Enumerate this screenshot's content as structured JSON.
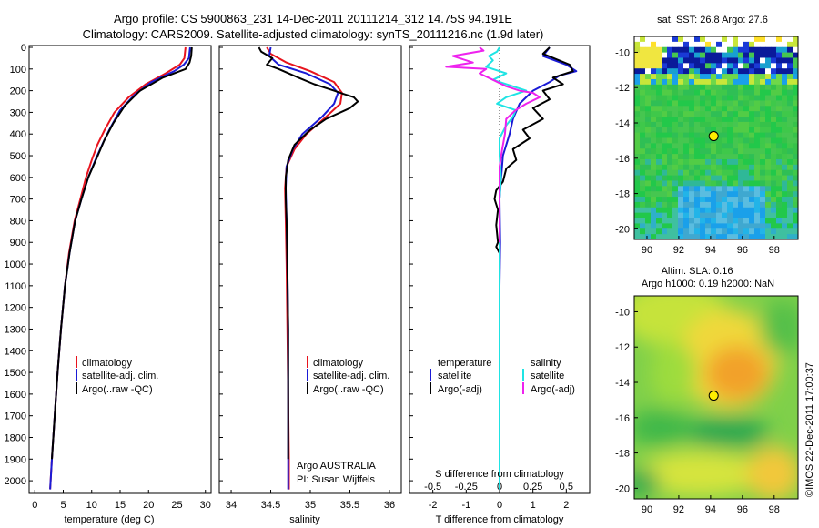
{
  "header": {
    "line1": "Argo profile: CS 5900863_231 14-Dec-2011 20111214_312 14.75S 94.191E",
    "line2": "Climatology: CARS2009. Satellite-adjusted climatology: synTS_20111216.nc (1.9d later)"
  },
  "colors": {
    "climatology": "#e8141e",
    "satellite": "#1a1ad6",
    "argo": "#000000",
    "sat_salinity": "#1fe4e4",
    "argo_salinity": "#ee22ee"
  },
  "depth_axis": {
    "min": 0,
    "max": 2050,
    "ticks": [
      0,
      100,
      200,
      300,
      400,
      500,
      600,
      700,
      800,
      900,
      1000,
      1100,
      1200,
      1300,
      1400,
      1500,
      1600,
      1700,
      1800,
      1900,
      2000
    ]
  },
  "panels": {
    "temperature": {
      "xlabel": "temperature (deg C)",
      "ticks": [
        "0",
        "5",
        "10",
        "15",
        "20",
        "25",
        "30"
      ],
      "legend": [
        "climatology",
        "satellite-adj. clim.",
        "Argo(..raw -QC)"
      ]
    },
    "salinity": {
      "xlabel": "salinity",
      "ticks": [
        "34",
        "34.5",
        "35",
        "35.5",
        "36"
      ],
      "legend": [
        "climatology",
        "satellite-adj. clim.",
        "Argo(..raw -QC)"
      ],
      "note1": "Argo AUSTRALIA",
      "note2": "PI: Susan Wijffels"
    },
    "difference": {
      "top_label": "S difference from climatology",
      "xlabel": "T difference from climatology",
      "s_ticks": [
        "-0.5",
        "-0.25",
        "0",
        "0.25",
        "0.5"
      ],
      "t_ticks": [
        "-2",
        "-1",
        "0",
        "1",
        "2"
      ],
      "legend_temp_title": "temperature",
      "legend_sal_title": "salinity",
      "legend_temp": [
        "satellite",
        "Argo(-adj)"
      ],
      "legend_sal": [
        "satellite",
        "Argo(-adj)"
      ]
    }
  },
  "maps": {
    "sst_title": "sat. SST: 26.8  Argo: 27.6",
    "sla_title1": "Altim. SLA: 0.16",
    "sla_title2": "Argo h1000: 0.19 h2000: NaN",
    "lat_ticks": [
      "-10",
      "-12",
      "-14",
      "-16",
      "-18",
      "-20"
    ],
    "lon_ticks": [
      "90",
      "92",
      "94",
      "96",
      "98"
    ],
    "argo_position": {
      "lon": 94.191,
      "lat": -14.75
    }
  },
  "credit": "©IMOS 22-Dec-2011 17:00:37",
  "chart_data": [
    {
      "type": "line",
      "panel": "temperature",
      "xlabel": "temperature (deg C)",
      "xlim": [
        -1,
        31
      ],
      "ylim": [
        0,
        2050
      ],
      "y_reversed": true,
      "series": [
        {
          "name": "climatology",
          "points": [
            [
              26.5,
              0
            ],
            [
              26.3,
              50
            ],
            [
              25.5,
              80
            ],
            [
              23,
              120
            ],
            [
              19.5,
              170
            ],
            [
              16.5,
              230
            ],
            [
              14,
              300
            ],
            [
              12.3,
              380
            ],
            [
              11,
              450
            ],
            [
              10,
              520
            ],
            [
              9,
              600
            ],
            [
              8,
              700
            ],
            [
              7,
              800
            ],
            [
              6,
              950
            ],
            [
              5.3,
              1100
            ],
            [
              4.6,
              1300
            ],
            [
              4,
              1500
            ],
            [
              3.5,
              1700
            ],
            [
              3,
              1900
            ],
            [
              2.7,
              2040
            ]
          ]
        },
        {
          "name": "satellite-adj. clim.",
          "points": [
            [
              27.3,
              0
            ],
            [
              27.1,
              50
            ],
            [
              26.2,
              80
            ],
            [
              24.5,
              110
            ],
            [
              20.5,
              160
            ],
            [
              17.5,
              220
            ],
            [
              15,
              290
            ],
            [
              13.3,
              370
            ],
            [
              12,
              440
            ],
            [
              10.8,
              510
            ],
            [
              9.4,
              600
            ],
            [
              8.2,
              700
            ],
            [
              7.1,
              800
            ],
            [
              6.1,
              950
            ],
            [
              5.3,
              1100
            ],
            [
              4.6,
              1300
            ],
            [
              4,
              1500
            ],
            [
              3.5,
              1700
            ],
            [
              3,
              1900
            ],
            [
              2.7,
              2040
            ]
          ]
        },
        {
          "name": "Argo(..raw -QC)",
          "points": [
            [
              27.6,
              0
            ],
            [
              27.5,
              40
            ],
            [
              27.2,
              70
            ],
            [
              26.5,
              100
            ],
            [
              22.5,
              140
            ],
            [
              18.5,
              200
            ],
            [
              15.8,
              270
            ],
            [
              13.8,
              350
            ],
            [
              12.2,
              430
            ],
            [
              10.9,
              510
            ],
            [
              9.4,
              600
            ],
            [
              8.2,
              700
            ],
            [
              7.1,
              800
            ],
            [
              6.1,
              950
            ],
            [
              5.3,
              1100
            ],
            [
              4.6,
              1300
            ],
            [
              4,
              1500
            ],
            [
              3.5,
              1700
            ],
            [
              3,
              1900
            ]
          ]
        }
      ]
    },
    {
      "type": "line",
      "panel": "salinity",
      "xlabel": "salinity",
      "xlim": [
        33.85,
        36.15
      ],
      "ylim": [
        0,
        2050
      ],
      "y_reversed": true,
      "series": [
        {
          "name": "climatology",
          "points": [
            [
              34.45,
              0
            ],
            [
              34.5,
              30
            ],
            [
              34.7,
              70
            ],
            [
              35.0,
              110
            ],
            [
              35.3,
              160
            ],
            [
              35.4,
              210
            ],
            [
              35.38,
              260
            ],
            [
              35.2,
              320
            ],
            [
              34.95,
              400
            ],
            [
              34.8,
              470
            ],
            [
              34.7,
              550
            ],
            [
              34.68,
              650
            ],
            [
              34.69,
              800
            ],
            [
              34.7,
              1000
            ],
            [
              34.71,
              1300
            ],
            [
              34.72,
              1600
            ],
            [
              34.73,
              1900
            ],
            [
              34.73,
              2040
            ]
          ]
        },
        {
          "name": "satellite-adj. clim.",
          "points": [
            [
              34.5,
              0
            ],
            [
              34.48,
              40
            ],
            [
              34.6,
              80
            ],
            [
              34.95,
              120
            ],
            [
              35.25,
              170
            ],
            [
              35.35,
              210
            ],
            [
              35.3,
              260
            ],
            [
              35.15,
              320
            ],
            [
              34.9,
              400
            ],
            [
              34.78,
              470
            ],
            [
              34.7,
              550
            ],
            [
              34.69,
              650
            ],
            [
              34.7,
              800
            ],
            [
              34.71,
              1000
            ],
            [
              34.72,
              1300
            ],
            [
              34.72,
              1600
            ],
            [
              34.72,
              1900
            ],
            [
              34.72,
              2040
            ]
          ]
        },
        {
          "name": "Argo(..raw -QC)",
          "points": [
            [
              34.35,
              0
            ],
            [
              34.38,
              20
            ],
            [
              34.52,
              50
            ],
            [
              34.45,
              80
            ],
            [
              34.6,
              100
            ],
            [
              34.85,
              140
            ],
            [
              35.05,
              170
            ],
            [
              35.3,
              200
            ],
            [
              35.42,
              215
            ],
            [
              35.55,
              230
            ],
            [
              35.6,
              250
            ],
            [
              35.5,
              280
            ],
            [
              35.2,
              330
            ],
            [
              35.0,
              380
            ],
            [
              34.8,
              450
            ],
            [
              34.72,
              520
            ],
            [
              34.69,
              600
            ],
            [
              34.69,
              700
            ],
            [
              34.7,
              800
            ],
            [
              34.71,
              1000
            ],
            [
              34.72,
              1300
            ],
            [
              34.72,
              1600
            ],
            [
              34.72,
              1900
            ]
          ]
        }
      ]
    },
    {
      "type": "line",
      "panel": "difference",
      "xlabel": "T difference from climatology",
      "x_secondary_label": "S difference from climatology",
      "xlim": [
        -2.7,
        2.7
      ],
      "s_xlim": [
        -0.675,
        0.675
      ],
      "ylim": [
        0,
        2050
      ],
      "y_reversed": true,
      "series": [
        {
          "name": "satellite (temperature)",
          "points": [
            [
              1.5,
              0
            ],
            [
              1.3,
              40
            ],
            [
              2.0,
              80
            ],
            [
              2.3,
              110
            ],
            [
              1.8,
              130
            ],
            [
              1.5,
              160
            ],
            [
              1.0,
              200
            ],
            [
              0.6,
              260
            ],
            [
              0.4,
              330
            ],
            [
              0.3,
              400
            ],
            [
              0.1,
              500
            ],
            [
              0.05,
              600
            ],
            [
              0,
              700
            ],
            [
              0.02,
              900
            ],
            [
              0,
              1100
            ],
            [
              0,
              1400
            ],
            [
              0,
              1700
            ],
            [
              0,
              2040
            ]
          ]
        },
        {
          "name": "Argo(-adj) (temperature)",
          "points": [
            [
              1.5,
              0
            ],
            [
              1.3,
              30
            ],
            [
              2.1,
              80
            ],
            [
              2.2,
              110
            ],
            [
              1.6,
              140
            ],
            [
              1.9,
              170
            ],
            [
              1.3,
              200
            ],
            [
              1.5,
              240
            ],
            [
              1.0,
              280
            ],
            [
              1.3,
              330
            ],
            [
              0.7,
              380
            ],
            [
              0.9,
              420
            ],
            [
              0.4,
              470
            ],
            [
              0.5,
              520
            ],
            [
              0.2,
              560
            ],
            [
              0.1,
              620
            ],
            [
              -0.1,
              660
            ],
            [
              -0.15,
              700
            ],
            [
              -0.05,
              750
            ],
            [
              -0.1,
              820
            ],
            [
              -0.05,
              900
            ],
            [
              -0.1,
              920
            ],
            [
              0,
              950
            ]
          ]
        },
        {
          "name": "satellite (salinity)",
          "points": [
            [
              0.0,
              0
            ],
            [
              -0.02,
              20
            ],
            [
              -0.08,
              40
            ],
            [
              -0.05,
              60
            ],
            [
              -0.1,
              90
            ],
            [
              0.05,
              120
            ],
            [
              -0.05,
              150
            ],
            [
              0.1,
              180
            ],
            [
              0.2,
              200
            ],
            [
              0.05,
              230
            ],
            [
              -0.02,
              260
            ],
            [
              0.12,
              290
            ],
            [
              0.1,
              320
            ],
            [
              0.05,
              360
            ],
            [
              0,
              420
            ],
            [
              0,
              500
            ],
            [
              0.01,
              600
            ],
            [
              0,
              700
            ],
            [
              0,
              800
            ],
            [
              0,
              1000
            ],
            [
              0,
              1200
            ],
            [
              0,
              1400
            ],
            [
              0,
              1600
            ],
            [
              0,
              1800
            ],
            [
              0,
              2040
            ]
          ]
        },
        {
          "name": "Argo(-adj) (salinity)",
          "points": [
            [
              -0.15,
              0
            ],
            [
              -0.12,
              15
            ],
            [
              -0.35,
              40
            ],
            [
              -0.2,
              70
            ],
            [
              -0.4,
              90
            ],
            [
              -0.1,
              100
            ],
            [
              -0.15,
              120
            ],
            [
              -0.05,
              150
            ],
            [
              0.05,
              180
            ],
            [
              0.15,
              200
            ],
            [
              0.25,
              210
            ],
            [
              0.3,
              230
            ],
            [
              0.2,
              260
            ],
            [
              0.12,
              290
            ],
            [
              0.05,
              330
            ],
            [
              0.04,
              400
            ],
            [
              0.02,
              470
            ],
            [
              0,
              550
            ],
            [
              0,
              650
            ],
            [
              0,
              800
            ],
            [
              0,
              900
            ]
          ]
        }
      ]
    }
  ]
}
